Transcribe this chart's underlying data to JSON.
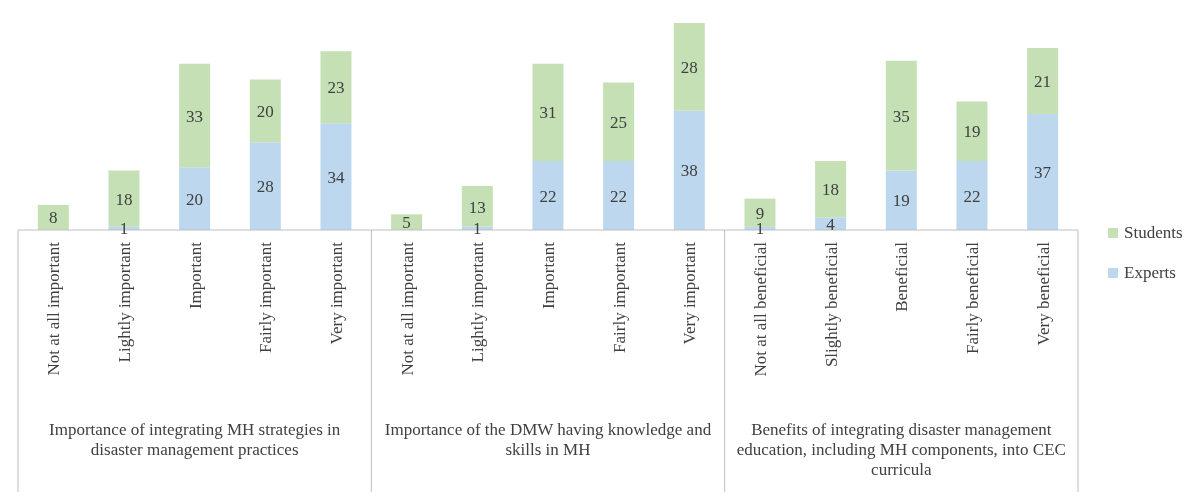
{
  "chart_data": {
    "type": "bar",
    "stacked": true,
    "data_labels": true,
    "legend": "right",
    "categories": [
      "Not at all important",
      "Lightly important",
      "Important",
      "Fairly important",
      "Very important",
      "Not at all important",
      "Lightly important",
      "Important",
      "Fairly important",
      "Very important",
      "Not at all beneficial",
      "Slightly beneficial",
      "Beneficial",
      "Fairly beneficial",
      "Very beneficial"
    ],
    "series": [
      {
        "name": "Experts",
        "color": "#bdd7ee",
        "values": [
          null,
          1,
          20,
          28,
          34,
          null,
          1,
          22,
          22,
          38,
          1,
          4,
          19,
          22,
          37
        ]
      },
      {
        "name": "Students",
        "color": "#c5e0b4",
        "values": [
          8,
          18,
          33,
          20,
          23,
          5,
          13,
          31,
          25,
          28,
          9,
          18,
          35,
          19,
          21
        ]
      }
    ],
    "annotations": [
      "Importance of integrating MH strategies in disaster management practices",
      "Importance of the DMW having knowledge and skills in MH",
      "Benefits of integrating disaster management education, including MH components, into CEC curricula"
    ]
  }
}
